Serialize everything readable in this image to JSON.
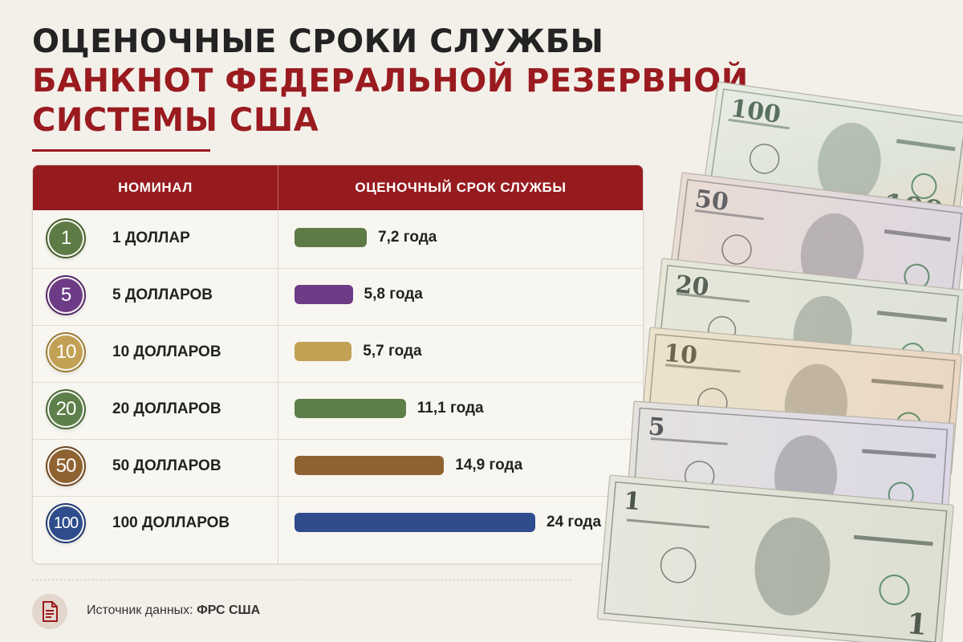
{
  "title": {
    "line1": "Оценочные сроки службы",
    "line2": "банкнот Федеральной резервной",
    "line3": "системы США"
  },
  "table": {
    "col1_header": "Номинал",
    "col2_header": "Оценочный срок службы"
  },
  "chart_data": {
    "type": "bar",
    "title": "Оценочные сроки службы банкнот Федеральной резервной системы США",
    "xlabel": "Номинал",
    "ylabel": "Оценочный срок службы",
    "categories": [
      "1 доллар",
      "5 долларов",
      "10 долларов",
      "20 долларов",
      "50 долларов",
      "100 долларов"
    ],
    "values": [
      7.2,
      5.8,
      5.7,
      11.1,
      14.9,
      24
    ],
    "value_labels": [
      "7,2 года",
      "5,8 года",
      "5,7 года",
      "11,1 года",
      "14,9 года",
      "24 года"
    ],
    "coin_labels": [
      "1",
      "5",
      "10",
      "20",
      "50",
      "100"
    ],
    "colors": [
      "#5e7a45",
      "#6e3c86",
      "#c2a155",
      "#5d7f49",
      "#8f6231",
      "#2f4d8c"
    ],
    "ring_colors": [
      "#45602e",
      "#55286b",
      "#9a7c35",
      "#466836",
      "#6f4720",
      "#1f3a74"
    ],
    "orientation": "horizontal",
    "grid": false
  },
  "source": {
    "label": "Источник данных:",
    "value": "ФРС США"
  },
  "banknote_labels": [
    "100",
    "50",
    "20",
    "10",
    "5",
    "1"
  ],
  "accent_color": "#9a1b1f"
}
